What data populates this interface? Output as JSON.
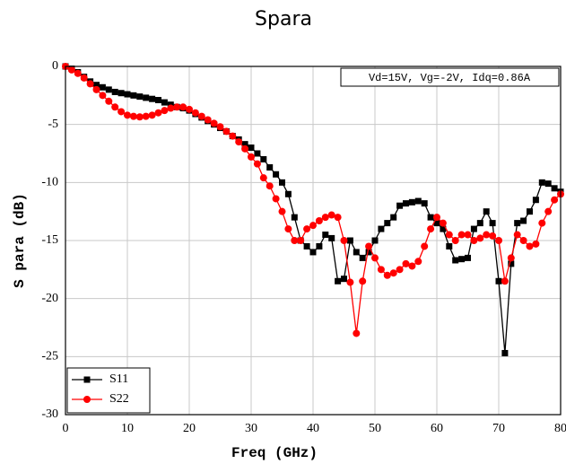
{
  "chart_data": {
    "type": "line",
    "title": "Spara",
    "xlabel": "Freq (GHz)",
    "ylabel": "S para (dB)",
    "annotation": "Vd=15V, Vg=-2V, Idq=0.86A",
    "x": [
      0,
      1,
      2,
      3,
      4,
      5,
      6,
      7,
      8,
      9,
      10,
      11,
      12,
      13,
      14,
      15,
      16,
      17,
      18,
      19,
      20,
      21,
      22,
      23,
      24,
      25,
      26,
      27,
      28,
      29,
      30,
      31,
      32,
      33,
      34,
      35,
      36,
      37,
      38,
      39,
      40,
      41,
      42,
      43,
      44,
      45,
      46,
      47,
      48,
      49,
      50,
      51,
      52,
      53,
      54,
      55,
      56,
      57,
      58,
      59,
      60,
      61,
      62,
      63,
      64,
      65,
      66,
      67,
      68,
      69,
      70,
      71,
      72,
      73,
      74,
      75,
      76,
      77,
      78,
      79,
      80
    ],
    "series": [
      {
        "name": "S11",
        "color": "#000000",
        "marker": "square",
        "values": [
          0,
          -0.2,
          -0.5,
          -0.9,
          -1.3,
          -1.6,
          -1.8,
          -2.0,
          -2.2,
          -2.3,
          -2.4,
          -2.5,
          -2.6,
          -2.7,
          -2.8,
          -2.9,
          -3.1,
          -3.3,
          -3.5,
          -3.6,
          -3.8,
          -4.1,
          -4.4,
          -4.7,
          -5.0,
          -5.3,
          -5.6,
          -6.0,
          -6.3,
          -6.7,
          -7.0,
          -7.5,
          -8.0,
          -8.7,
          -9.3,
          -10.0,
          -11.0,
          -13.0,
          -15.0,
          -15.5,
          -16.0,
          -15.5,
          -14.5,
          -14.8,
          -18.5,
          -18.3,
          -15.0,
          -16.0,
          -16.5,
          -16.0,
          -15.0,
          -14.0,
          -13.5,
          -13.0,
          -12.0,
          -11.8,
          -11.7,
          -11.6,
          -11.8,
          -13.0,
          -13.5,
          -14.0,
          -15.5,
          -16.7,
          -16.6,
          -16.5,
          -14.0,
          -13.5,
          -12.5,
          -13.5,
          -18.5,
          -24.7,
          -17.0,
          -13.5,
          -13.3,
          -12.5,
          -11.5,
          -10.0,
          -10.1,
          -10.5,
          -10.8
        ]
      },
      {
        "name": "S22",
        "color": "#ff0000",
        "marker": "circle",
        "values": [
          0,
          -0.3,
          -0.6,
          -1.0,
          -1.5,
          -2.0,
          -2.5,
          -3.0,
          -3.5,
          -3.9,
          -4.2,
          -4.3,
          -4.35,
          -4.3,
          -4.2,
          -4.0,
          -3.8,
          -3.6,
          -3.5,
          -3.5,
          -3.7,
          -4.0,
          -4.3,
          -4.6,
          -4.9,
          -5.2,
          -5.6,
          -6.0,
          -6.5,
          -7.1,
          -7.8,
          -8.4,
          -9.6,
          -10.3,
          -11.4,
          -12.5,
          -14.0,
          -15.0,
          -15.0,
          -14.0,
          -13.7,
          -13.3,
          -13.0,
          -12.8,
          -13.0,
          -15.0,
          -18.6,
          -23.0,
          -18.5,
          -15.5,
          -16.5,
          -17.5,
          -18.0,
          -17.8,
          -17.5,
          -17.0,
          -17.2,
          -16.8,
          -15.5,
          -14.0,
          -13.0,
          -13.5,
          -14.5,
          -15.0,
          -14.5,
          -14.5,
          -15.0,
          -14.8,
          -14.5,
          -14.6,
          -15.0,
          -18.5,
          -16.5,
          -14.5,
          -15.0,
          -15.5,
          -15.3,
          -13.5,
          -12.5,
          -11.5,
          -11.0
        ]
      }
    ],
    "xlim": [
      0,
      80
    ],
    "xticks": [
      0,
      10,
      20,
      30,
      40,
      50,
      60,
      70,
      80
    ],
    "ylim": [
      -30,
      0
    ],
    "yticks": [
      0,
      -5,
      -10,
      -15,
      -20,
      -25,
      -30
    ],
    "grid": true,
    "legend": "lower left"
  }
}
